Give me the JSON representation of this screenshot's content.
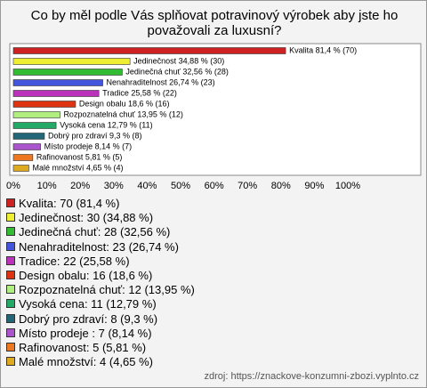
{
  "chart_data": {
    "type": "bar",
    "orientation": "horizontal",
    "title": "Co by měl podle Vás splňovat potravinový výrobek aby jste ho považovali za luxusní?",
    "categories": [
      "Kvalita",
      "Jedinečnost",
      "Jedinečná chuť",
      "Nenahraditelnost",
      "Tradice",
      "Design obalu",
      "Rozpoznatelná chuť",
      "Vysoká cena",
      "Dobrý pro zdraví",
      "Místo prodeje",
      "Rafinovanost",
      "Malé množství"
    ],
    "values": [
      81.4,
      34.88,
      32.56,
      26.74,
      25.58,
      18.6,
      13.95,
      12.79,
      9.3,
      8.14,
      5.81,
      4.65
    ],
    "value_labels": [
      "Kvalita 81,4 % (70)",
      "Jedinečnost 34,88 % (30)",
      "Jedinečná chuť 32,56 % (28)",
      "Nenahraditelnost 26,74 % (23)",
      "Tradice 25,58 % (22)",
      "Design obalu 18,6 % (16)",
      "Rozpoznatelná chuť 13,95 % (12)",
      "Vysoká cena 12,79 % (11)",
      "Dobrý pro zdraví 9,3 % (8)",
      "Místo prodeje  8,14 % (7)",
      "Rafinovanost 5,81 % (5)",
      "Malé množství 4,65 % (4)"
    ],
    "colors": [
      "#cc2222",
      "#eeee33",
      "#33bb33",
      "#4455dd",
      "#bb33bb",
      "#dd3311",
      "#b0ee80",
      "#22aa66",
      "#226677",
      "#aa55cc",
      "#ee7722",
      "#ddaa22"
    ],
    "legend": [
      "Kvalita: 70 (81,4 %)",
      "Jedinečnost: 30 (34,88 %)",
      "Jedinečná chuť: 28 (32,56 %)",
      "Nenahraditelnost: 23 (26,74 %)",
      "Tradice: 22 (25,58 %)",
      "Design obalu: 16 (18,6 %)",
      "Rozpoznatelná chuť: 12 (13,95 %)",
      "Vysoká cena: 11 (12,79 %)",
      "Dobrý pro zdraví: 8 (9,3 %)",
      "Místo prodeje : 7 (8,14 %)",
      "Rafinovanost: 5 (5,81 %)",
      "Malé množství: 4 (4,65 %)"
    ],
    "xlim": [
      0,
      100
    ],
    "xticks": [
      {
        "value": 0,
        "label": "0%"
      },
      {
        "value": 10,
        "label": "10%"
      },
      {
        "value": 20,
        "label": "20%"
      },
      {
        "value": 30,
        "label": "30%"
      },
      {
        "value": 40,
        "label": "40%"
      },
      {
        "value": 50,
        "label": "50%"
      },
      {
        "value": 60,
        "label": "60%"
      },
      {
        "value": 70,
        "label": "70%"
      },
      {
        "value": 80,
        "label": "80%"
      },
      {
        "value": 90,
        "label": "90%"
      },
      {
        "value": 100,
        "label": "100%"
      }
    ],
    "source": "zdroj: https://znackove-konzumni-zbozi.vyplnto.cz"
  }
}
